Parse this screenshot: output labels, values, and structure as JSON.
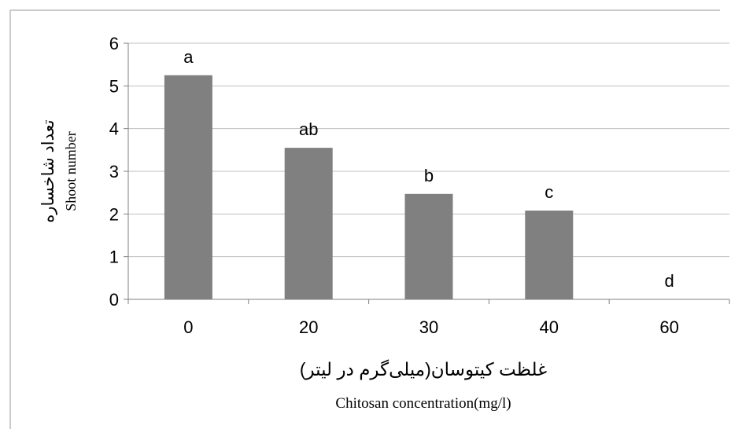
{
  "chart_data": {
    "type": "bar",
    "categories": [
      "0",
      "20",
      "30",
      "40",
      "60"
    ],
    "values": [
      5.25,
      3.55,
      2.47,
      2.08,
      0
    ],
    "significance_letters": [
      "a",
      "ab",
      "b",
      "c",
      "d"
    ],
    "ylim": [
      0,
      6
    ],
    "yticks": [
      "0",
      "1",
      "2",
      "3",
      "4",
      "5",
      "6"
    ],
    "ylabel_fa": "تعداد شاخساره",
    "ylabel_en": "Shoot number",
    "xlabel_fa": "غلظت کیتوسان(میلی‌گرم در لیتر)",
    "xlabel_en": "Chitosan concentration(mg/l)",
    "grid": true,
    "legend": "none",
    "bar_color": "#808080",
    "grid_color": "#bfbfbf",
    "axis_color": "#808080"
  }
}
